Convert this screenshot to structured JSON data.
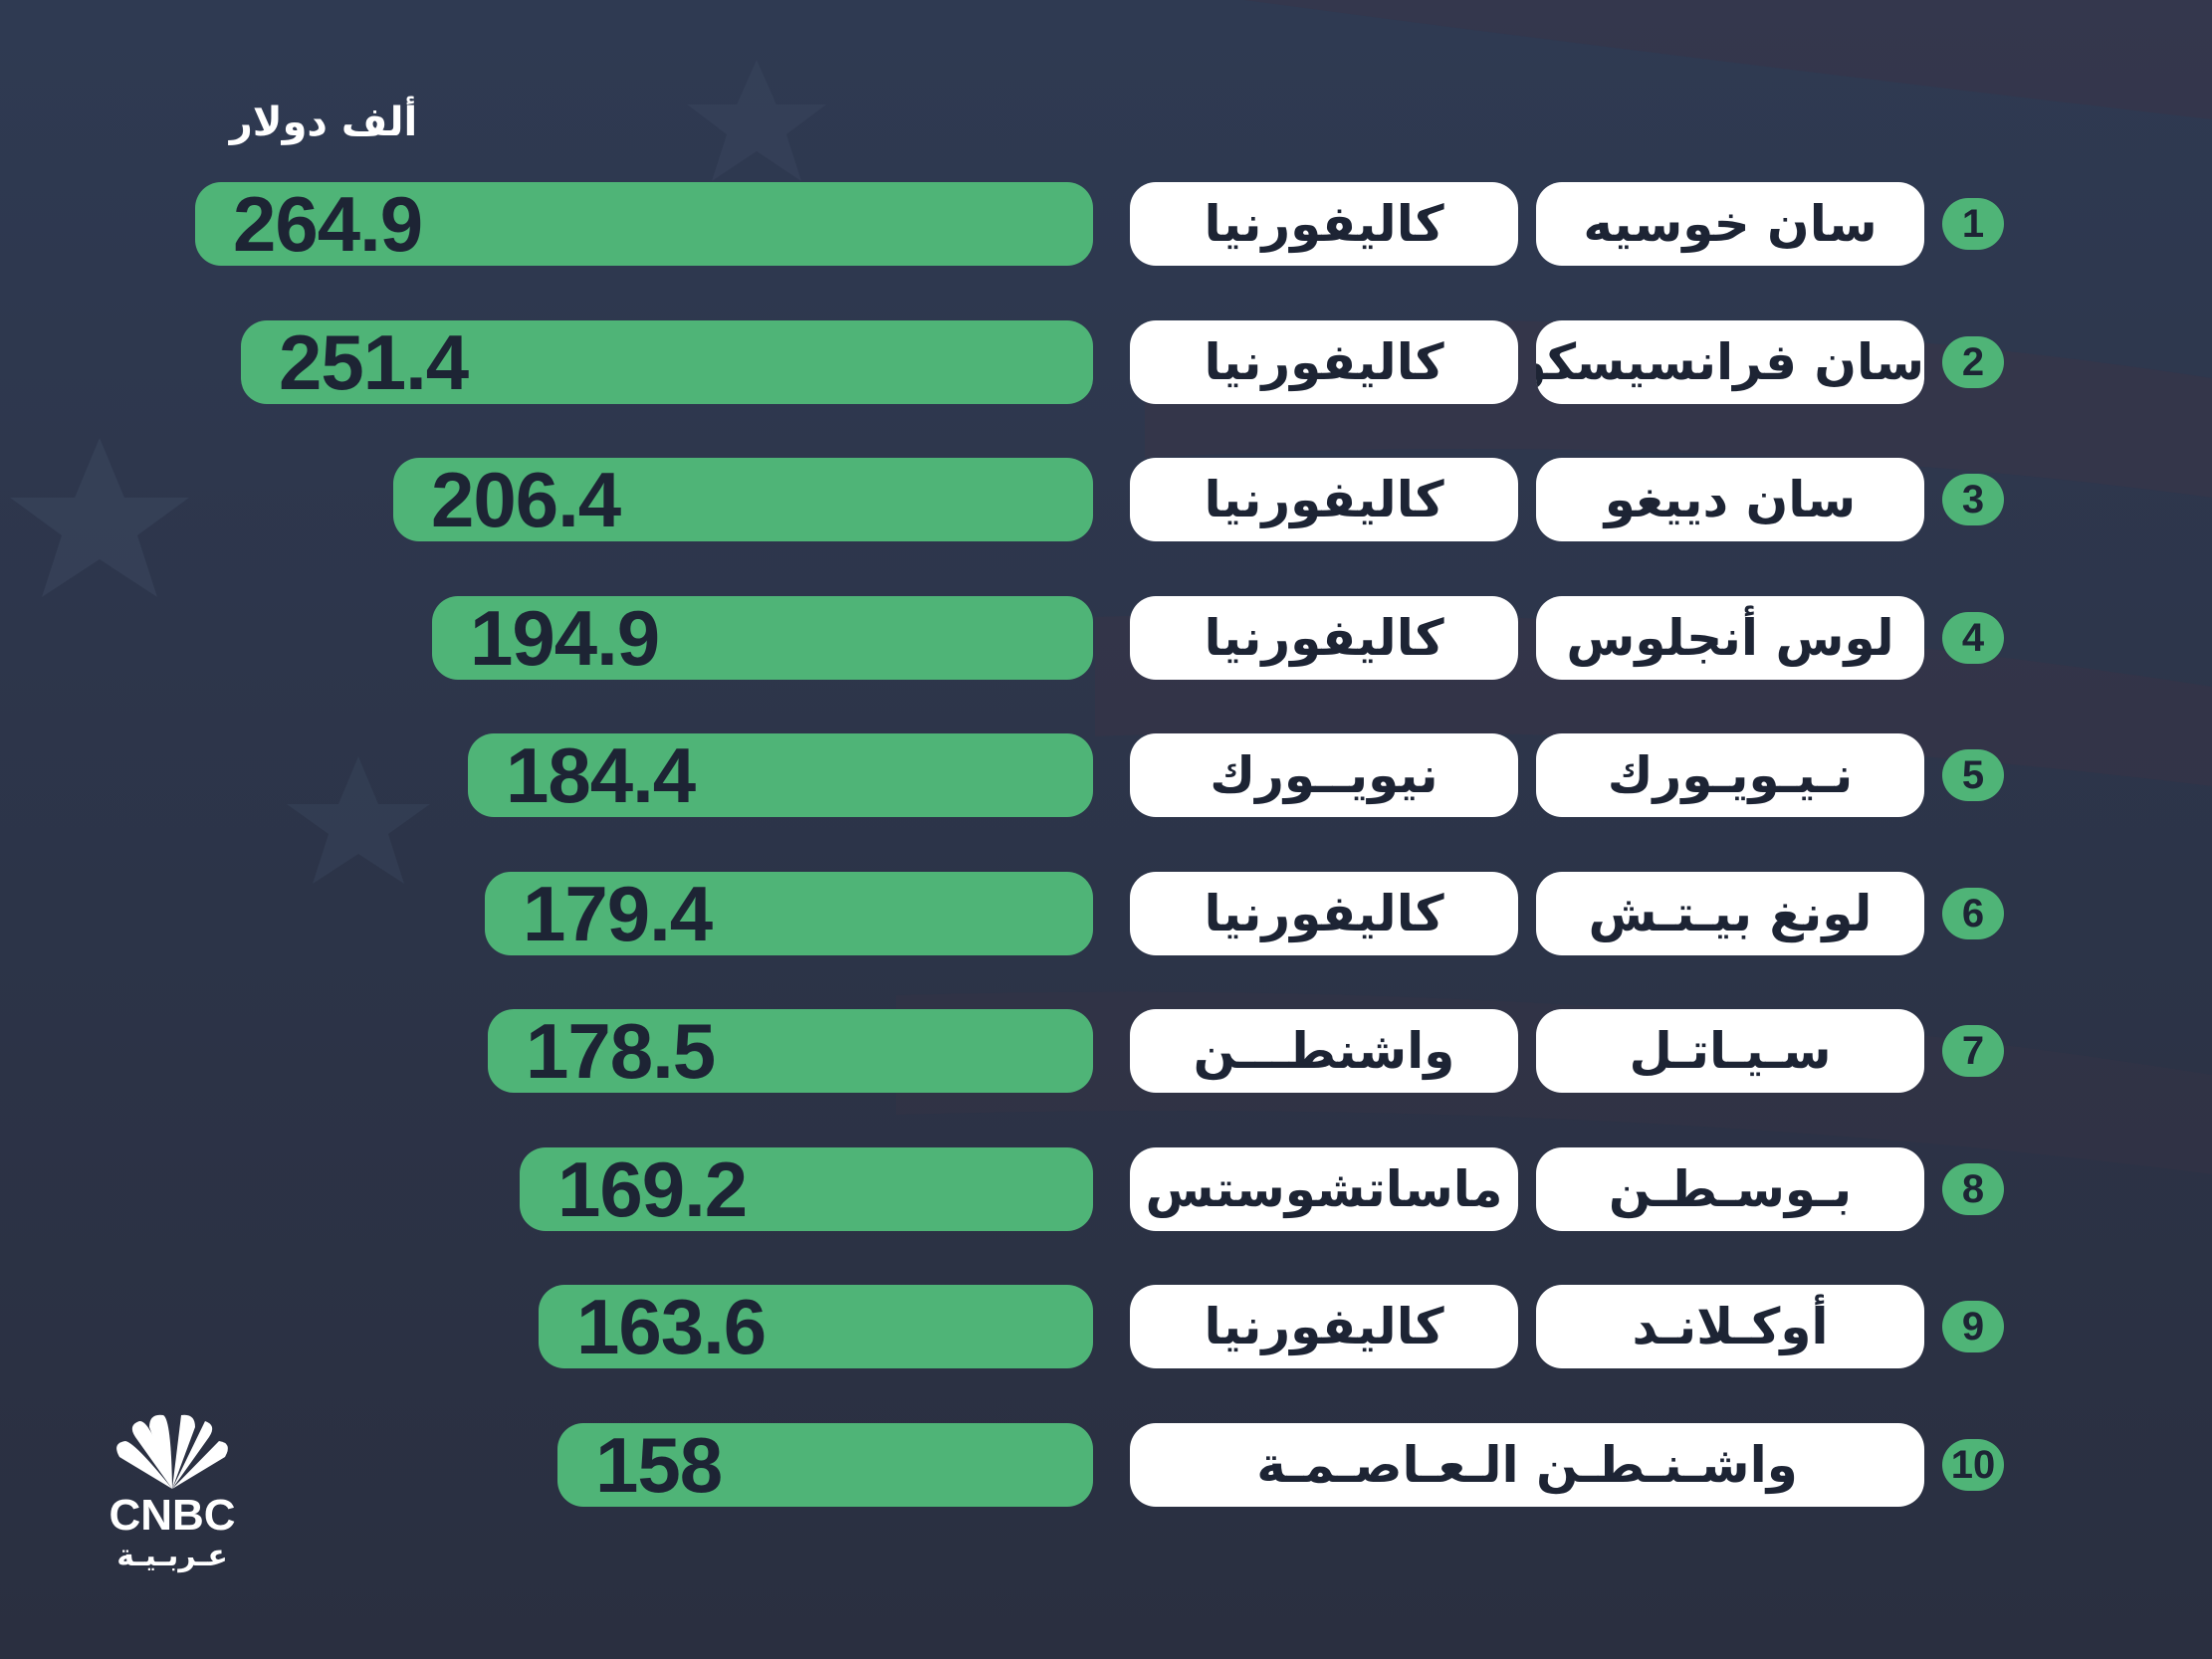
{
  "unit_label": "ألف دولار",
  "colors": {
    "bar": "#4fb477",
    "pill": "#ffffff",
    "text_dark": "#1d2434",
    "background": "#2c3448"
  },
  "logo": {
    "brand": "CNBC",
    "sub": "عـربـيـة"
  },
  "chart_data": {
    "type": "bar",
    "orientation": "horizontal",
    "title": "",
    "unit": "ألف دولار",
    "xlim": [
      0,
      264.9
    ],
    "categories": [
      "سان خوسيه",
      "سان فرانسيسكو",
      "سان دييغو",
      "لوس أنجلوس",
      "نـيـويـورك",
      "لونغ بيـتـش",
      "سـيـاتـل",
      "بـوسـطـن",
      "أوكـلانـد",
      "واشـنـطـن الـعـاصـمـة"
    ],
    "ranks": [
      "1",
      "2",
      "3",
      "4",
      "5",
      "6",
      "7",
      "8",
      "9",
      "10"
    ],
    "states": [
      "كاليفورنيا",
      "كاليفورنيا",
      "كاليفورنيا",
      "كاليفورنيا",
      "نيويــورك",
      "كاليفورنيا",
      "واشنطـــن",
      "ماساتشوستس",
      "كاليفورنيا",
      ""
    ],
    "values": [
      264.9,
      251.4,
      206.4,
      194.9,
      184.4,
      179.4,
      178.5,
      169.2,
      163.6,
      158
    ],
    "value_labels": [
      "264.9",
      "251.4",
      "206.4",
      "194.9",
      "184.4",
      "179.4",
      "178.5",
      "169.2",
      "163.6",
      "158"
    ]
  }
}
